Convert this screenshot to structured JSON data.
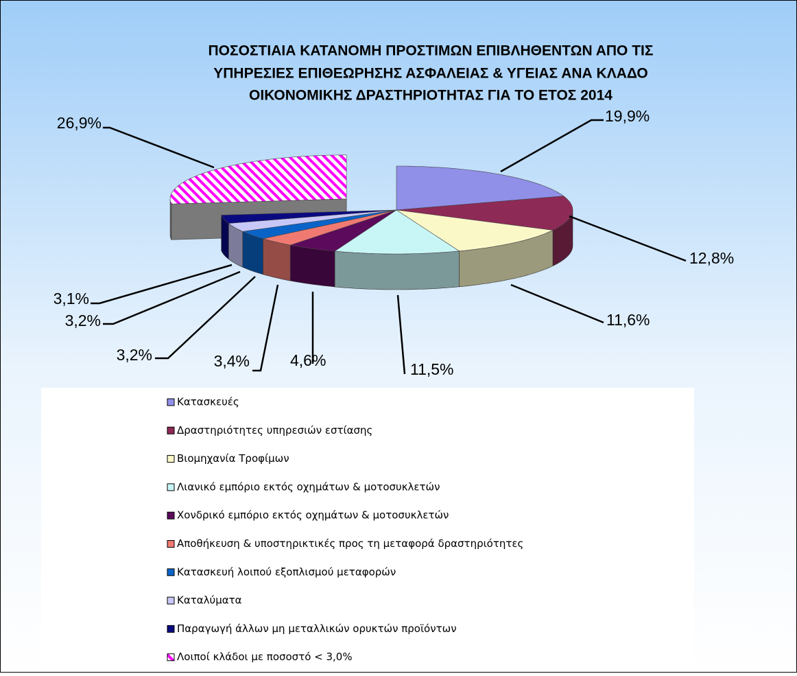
{
  "chart_data": {
    "type": "pie",
    "title": [
      "ΠΟΣΟΣΤΙΑΙΑ ΚΑΤΑΝΟΜΗ ΠΡΟΣΤΙΜΩΝ ΕΠΙΒΛΗΘΕΝΤΩΝ ΑΠΟ ΤΙΣ",
      "ΥΠΗΡΕΣΙΕΣ  ΕΠΙΘΕΩΡΗΣΗΣ ΑΣΦΑΛΕΙΑΣ & ΥΓΕΙΑΣ ΑΝΑ ΚΛΑΔΟ",
      "ΟΙΚΟΝΟΜΙΚΗΣ ΔΡΑΣΤΗΡΙΟΤΗΤΑΣ ΓΙΑ ΤΟ ΕΤΟΣ 2014"
    ],
    "categories": [
      "Κατασκευές",
      "Δραστηριότητες υπηρεσιών εστίασης",
      "Βιομηχανία Τροφίμων",
      "Λιανικό εμπόριο εκτός οχημάτων & μοτοσυκλετών",
      "Χονδρικό εμπόριο εκτός οχημάτων & μοτοσυκλετών",
      "Αποθήκευση & υποστηρικτικές προς τη μεταφορά δραστηριότητες",
      "Κατασκευή λοιπού εξοπλισμού μεταφορών",
      "Καταλύματα",
      "Παραγωγή άλλων μη μεταλλικών ορυκτών προϊόντων",
      "Λοιποί κλάδοι με ποσοστό < 3,0%"
    ],
    "values": [
      19.9,
      12.8,
      11.6,
      11.5,
      4.6,
      3.4,
      3.2,
      3.2,
      3.1,
      26.9
    ],
    "value_labels": [
      "19,9%",
      "12,8%",
      "11,6%",
      "11,5%",
      "4,6%",
      "3,4%",
      "3,2%",
      "3,2%",
      "3,1%",
      "26,9%"
    ],
    "colors": [
      "#9090e8",
      "#8e2a56",
      "#fbf8c8",
      "#c8f6f6",
      "#5c0a5c",
      "#f07a72",
      "#0a64c8",
      "#c8c8f8",
      "#0a0a80",
      "#ff00ff"
    ],
    "exploded_slice": 9,
    "hatched_slice": 9,
    "legend": "bottom"
  }
}
